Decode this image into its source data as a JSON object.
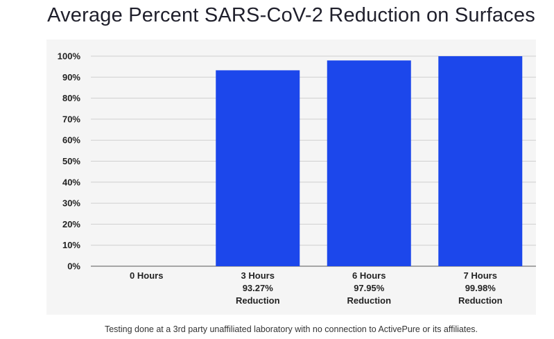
{
  "chart_data": {
    "type": "bar",
    "title": "Average Percent SARS-CoV-2 Reduction on Surfaces",
    "categories": [
      "0 Hours",
      "3 Hours",
      "6 Hours",
      "7 Hours"
    ],
    "value_labels": [
      "",
      "93.27%",
      "97.95%",
      "99.98%"
    ],
    "sublabels": [
      "",
      "Reduction",
      "Reduction",
      "Reduction"
    ],
    "values": [
      0,
      93.27,
      97.95,
      99.98
    ],
    "yticks": [
      "0%",
      "10%",
      "20%",
      "30%",
      "40%",
      "50%",
      "60%",
      "70%",
      "80%",
      "90%",
      "100%"
    ],
    "ylim": [
      0,
      100
    ],
    "grid": true,
    "bar_color": "#1c47eb"
  },
  "footnote": "Testing done at a 3rd party unaffiliated laboratory with no connection to ActivePure or its affiliates."
}
